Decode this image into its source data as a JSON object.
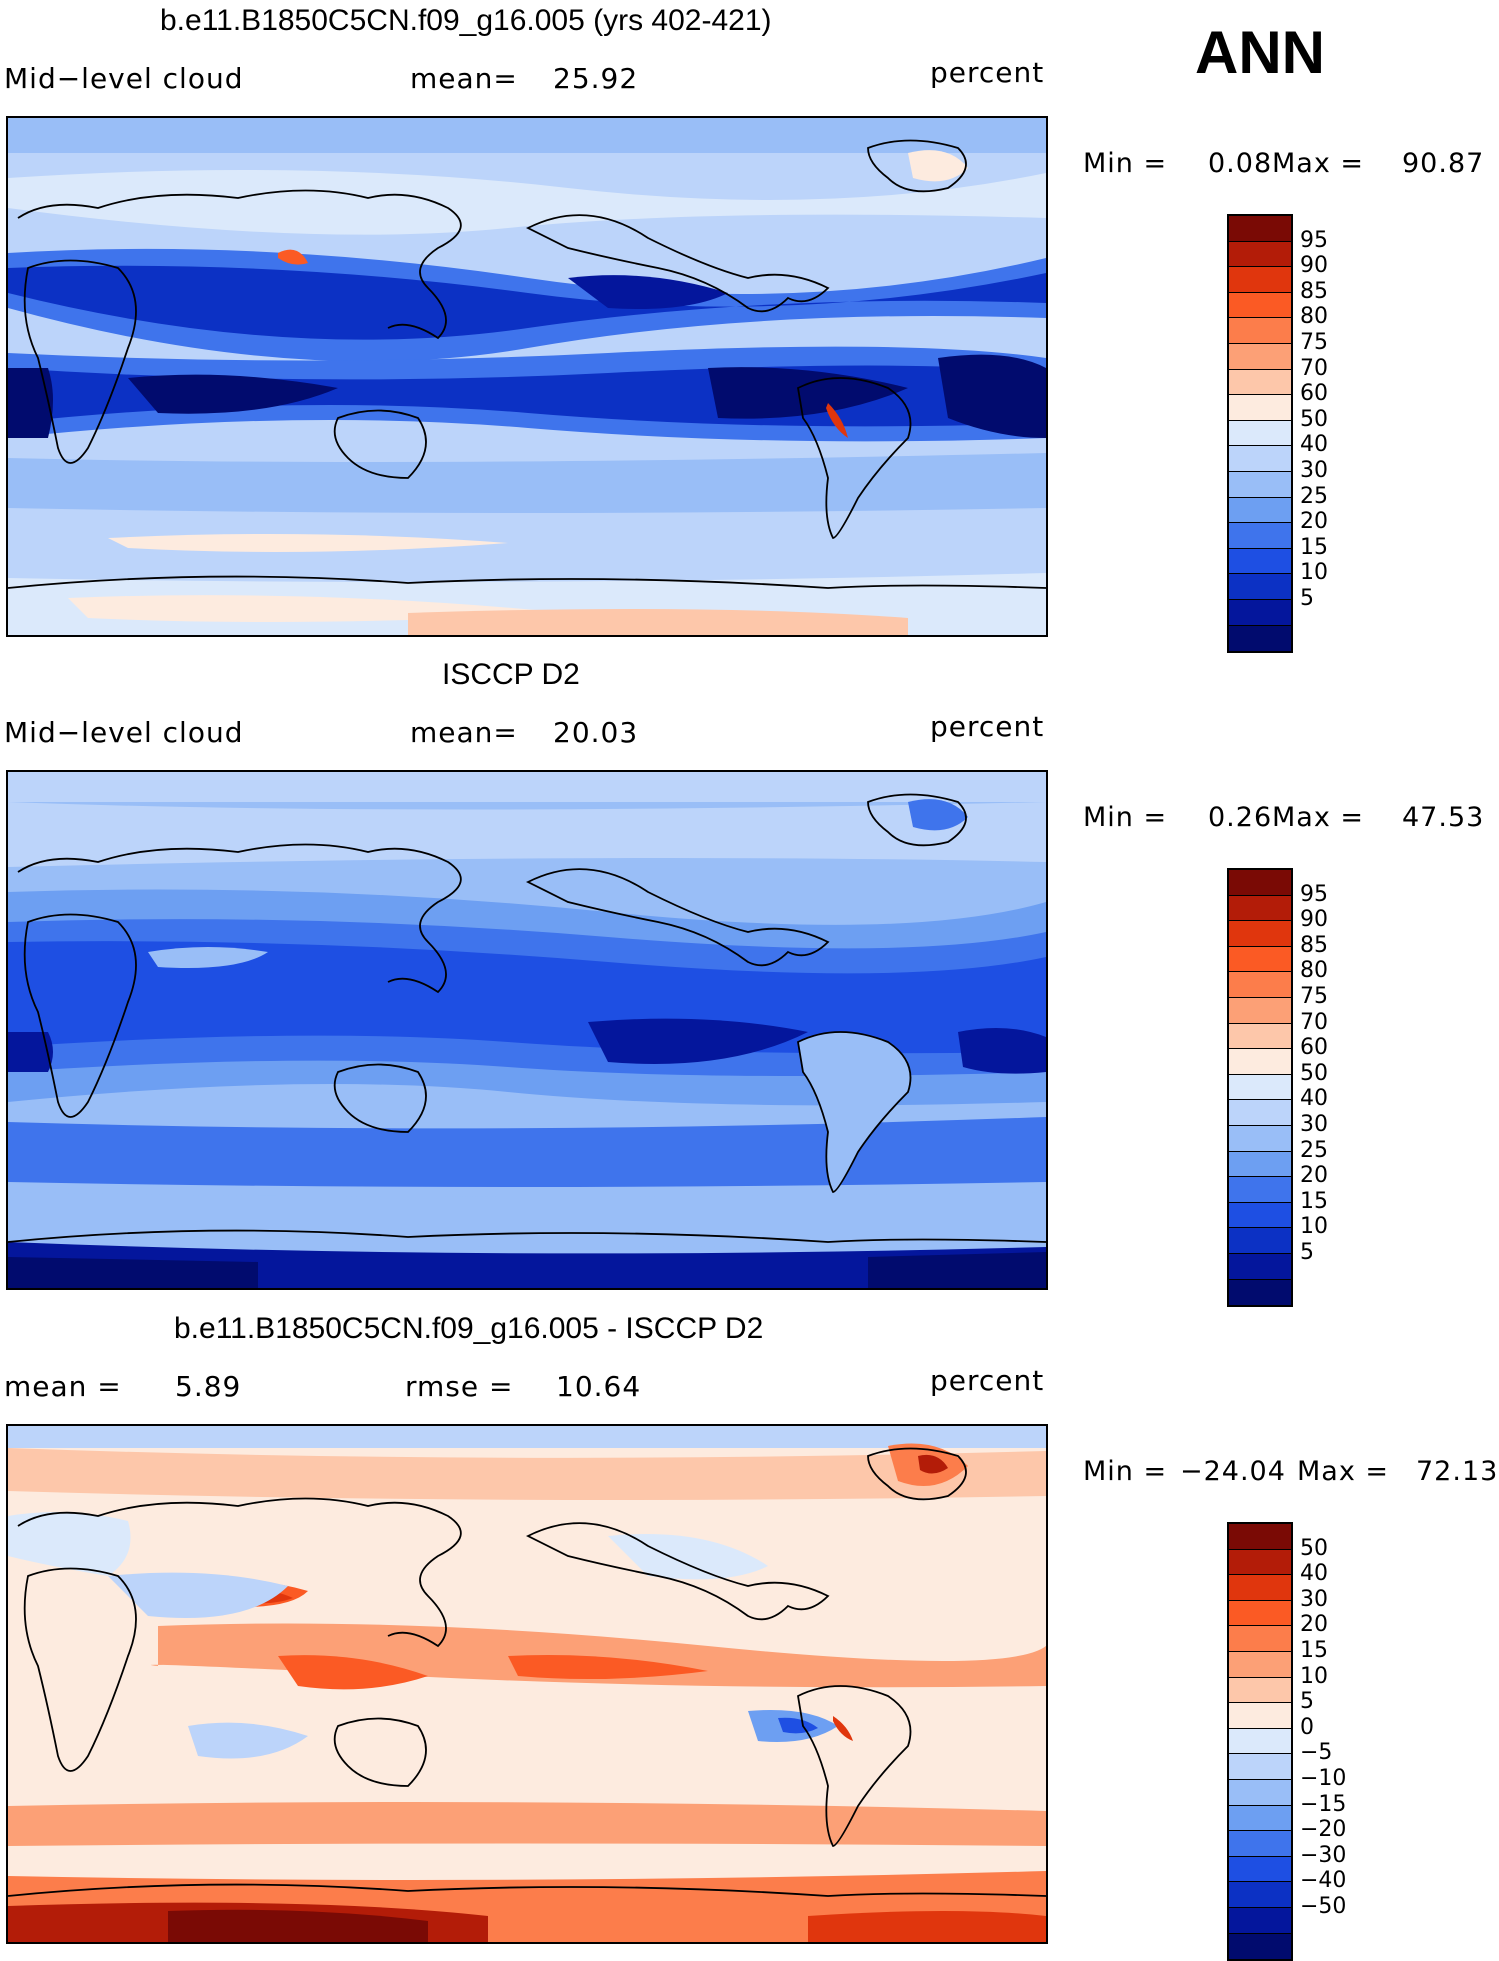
{
  "season": "ANN",
  "panels": [
    {
      "title": "b.e11.B1850C5CN.f09_g16.005 (yrs 402-421)",
      "left_label": "Mid−level cloud",
      "center_label": "mean=",
      "center_value": "25.92",
      "right_value": "",
      "units": "percent",
      "min_label": "Min =",
      "min_value": "0.08",
      "max_label": "Max =",
      "max_value": "90.87",
      "colorbar": {
        "colors": [
          "#7a0a05",
          "#b31c08",
          "#e0360d",
          "#fb5a24",
          "#fc7d4b",
          "#fca076",
          "#fdc7aa",
          "#fdebdf",
          "#dbe9fb",
          "#bcd4fa",
          "#99bef7",
          "#6d9ff2",
          "#3f74ec",
          "#1e4fe3",
          "#0c31c4",
          "#04169c",
          "#010b6e"
        ],
        "labels": [
          "95",
          "90",
          "85",
          "80",
          "75",
          "70",
          "60",
          "50",
          "40",
          "30",
          "25",
          "20",
          "15",
          "10",
          "5"
        ]
      }
    },
    {
      "title": "ISCCP D2",
      "left_label": "Mid−level cloud",
      "center_label": "mean=",
      "center_value": "20.03",
      "right_value": "",
      "units": "percent",
      "min_label": "Min =",
      "min_value": "0.26",
      "max_label": "Max =",
      "max_value": "47.53",
      "colorbar": {
        "colors": [
          "#7a0a05",
          "#b31c08",
          "#e0360d",
          "#fb5a24",
          "#fc7d4b",
          "#fca076",
          "#fdc7aa",
          "#fdebdf",
          "#dbe9fb",
          "#bcd4fa",
          "#99bef7",
          "#6d9ff2",
          "#3f74ec",
          "#1e4fe3",
          "#0c31c4",
          "#04169c",
          "#010b6e"
        ],
        "labels": [
          "95",
          "90",
          "85",
          "80",
          "75",
          "70",
          "60",
          "50",
          "40",
          "30",
          "25",
          "20",
          "15",
          "10",
          "5"
        ]
      }
    },
    {
      "title": "b.e11.B1850C5CN.f09_g16.005 - ISCCP D2",
      "left_label": "mean =",
      "left_value": "5.89",
      "center_label": "rmse =",
      "center_value": "10.64",
      "units": "percent",
      "min_label": "Min =",
      "min_value": "−24.04",
      "max_label": "Max =",
      "max_value": "72.13",
      "colorbar": {
        "colors": [
          "#7a0a05",
          "#b31c08",
          "#e0360d",
          "#fb5a24",
          "#fc7d4b",
          "#fca076",
          "#fdc7aa",
          "#fdebdf",
          "#dbe9fb",
          "#bcd4fa",
          "#99bef7",
          "#6d9ff2",
          "#3f74ec",
          "#1e4fe3",
          "#0c31c4",
          "#04169c",
          "#010b6e"
        ],
        "labels": [
          "50",
          "40",
          "30",
          "20",
          "15",
          "10",
          "5",
          "0",
          "−5",
          "−10",
          "−15",
          "−20",
          "−30",
          "−40",
          "−50"
        ]
      }
    }
  ]
}
